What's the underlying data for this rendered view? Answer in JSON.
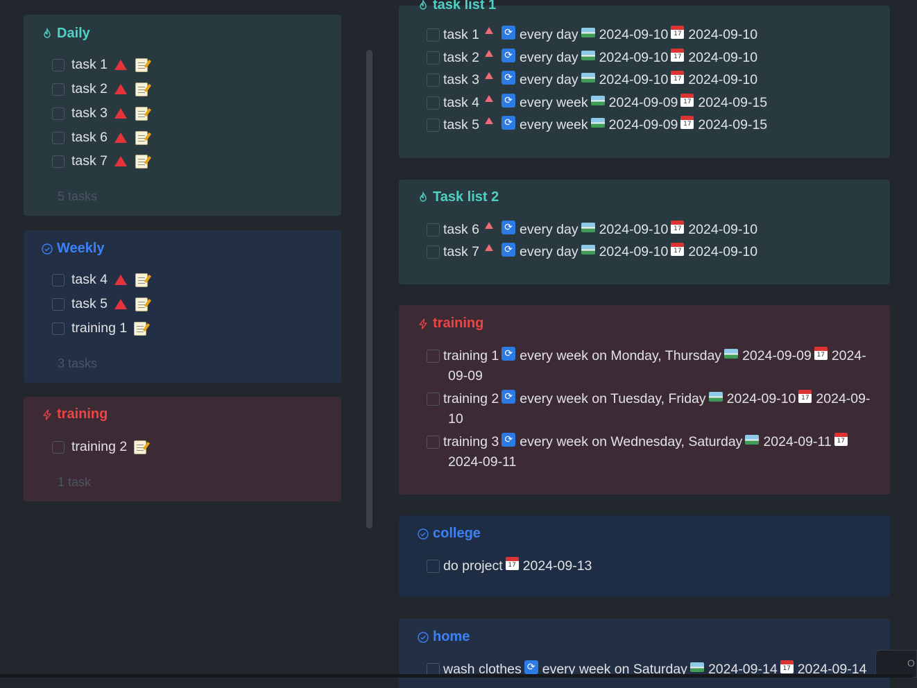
{
  "left_panel": {
    "daily": {
      "title": "Daily",
      "tasks": [
        "task 1",
        "task 2",
        "task 3",
        "task 6",
        "task 7"
      ],
      "count": "5 tasks"
    },
    "weekly": {
      "title": "Weekly",
      "tasks": [
        "task 4",
        "task 5",
        "training 1"
      ],
      "count": "3 tasks"
    },
    "training": {
      "title": "training",
      "tasks": [
        "training 2"
      ],
      "count": "1 task"
    }
  },
  "right_panel": {
    "list1": {
      "title": "task list 1",
      "rows": [
        {
          "name": "task 1",
          "recurrence": "every day",
          "start": "2024-09-10",
          "due": "2024-09-10"
        },
        {
          "name": "task 2",
          "recurrence": "every day",
          "start": "2024-09-10",
          "due": "2024-09-10"
        },
        {
          "name": "task 3",
          "recurrence": "every day",
          "start": "2024-09-10",
          "due": "2024-09-10"
        },
        {
          "name": "task 4",
          "recurrence": "every week",
          "start": "2024-09-09",
          "due": "2024-09-15"
        },
        {
          "name": "task 5",
          "recurrence": "every week",
          "start": "2024-09-09",
          "due": "2024-09-15"
        }
      ]
    },
    "list2": {
      "title": "Task list 2",
      "rows": [
        {
          "name": "task 6",
          "recurrence": "every day",
          "start": "2024-09-10",
          "due": "2024-09-10"
        },
        {
          "name": "task 7",
          "recurrence": "every day",
          "start": "2024-09-10",
          "due": "2024-09-10"
        }
      ]
    },
    "training": {
      "title": "training",
      "rows": [
        {
          "name": "training 1",
          "recurrence": "every week on Monday, Thursday",
          "start": "2024-09-09",
          "due_a": "2024-",
          "due_b": "09-09"
        },
        {
          "name": "training 2",
          "recurrence": "every week on Tuesday, Friday",
          "start": "2024-09-10",
          "due_a": "2024-09-",
          "due_b": "10"
        },
        {
          "name": "training 3",
          "recurrence": "every week on Wednesday, Saturday",
          "start": "2024-09-11",
          "due_b": "2024-09-11"
        }
      ]
    },
    "college": {
      "title": "college",
      "rows": [
        {
          "name": "do project",
          "due": "2024-09-13"
        }
      ]
    },
    "home": {
      "title": "home",
      "rows": [
        {
          "name": "wash clothes",
          "recurrence": "every week on Saturday",
          "start": "2024-09-14",
          "due": "2024-09-14"
        }
      ]
    }
  },
  "icons": {
    "flame": "flame-icon",
    "check_circle": "check-circle-icon",
    "lightning": "lightning-icon",
    "priority": "priority-high-icon",
    "note": "memo-icon",
    "recurrence": "repeat-icon",
    "start": "start-date-icon",
    "due": "calendar-icon"
  },
  "corner_label": "O",
  "colors": {
    "teal": "#4fd1c5",
    "blue": "#3b82f6",
    "red": "#ef4444"
  }
}
